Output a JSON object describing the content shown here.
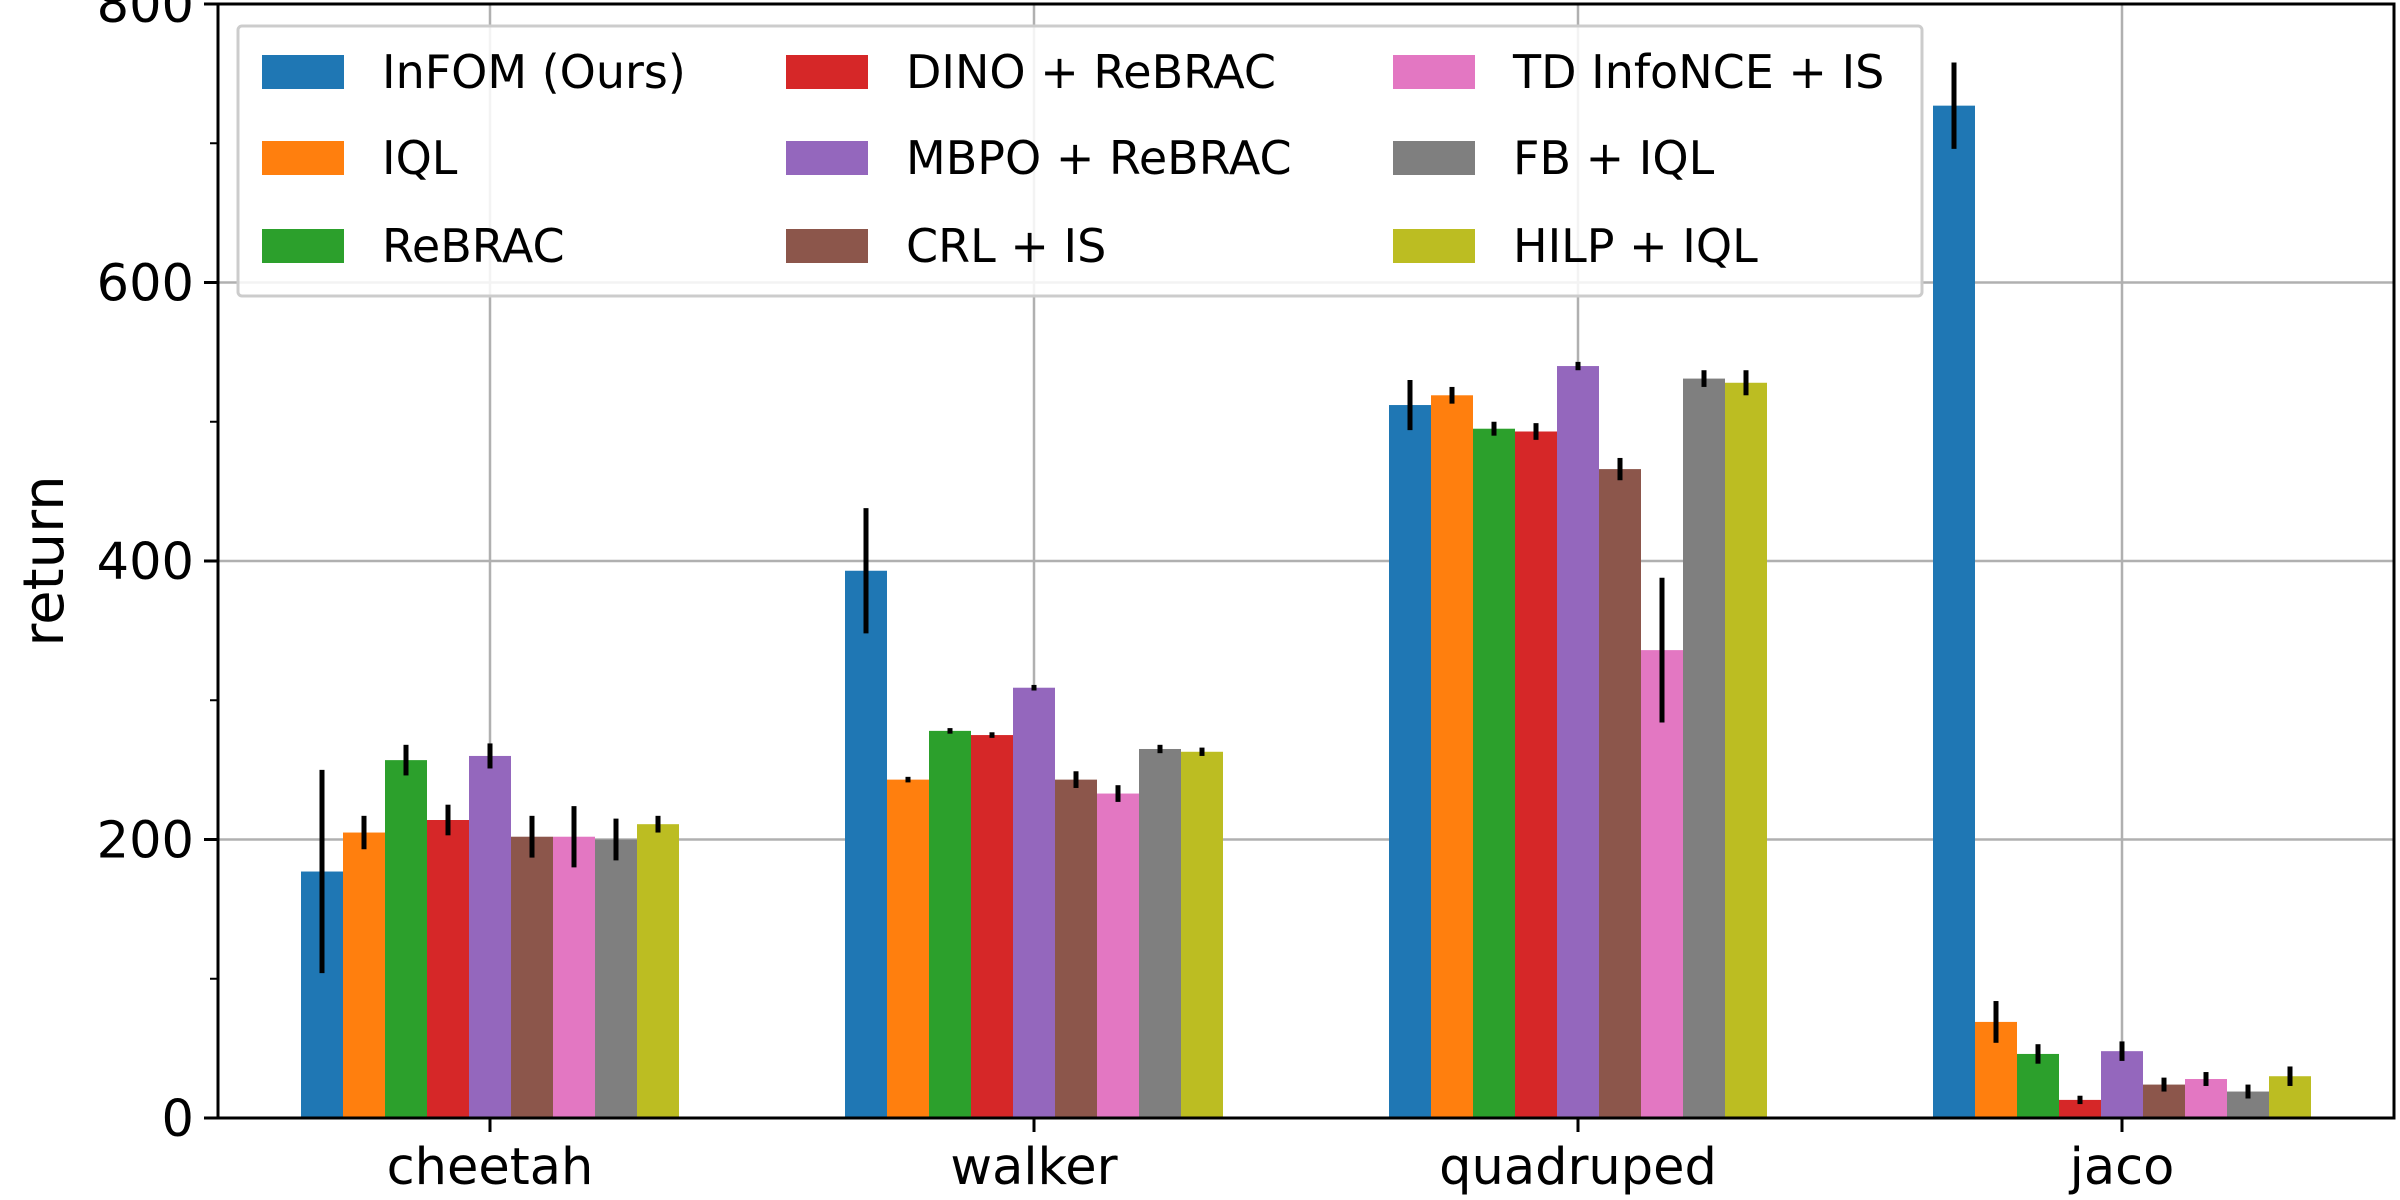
{
  "chart_data": {
    "type": "bar",
    "title": "",
    "xlabel": "",
    "ylabel": "return",
    "ylim": [
      0,
      800
    ],
    "yticks": [
      0,
      200,
      400,
      600,
      800
    ],
    "yticks_minor": [
      100,
      300,
      500,
      700
    ],
    "grid": true,
    "legend_position": "top-left",
    "legend_columns": 3,
    "categories": [
      "cheetah",
      "walker",
      "quadruped",
      "jaco"
    ],
    "series": [
      {
        "name": "InFOM (Ours)",
        "color": "#1f77b4",
        "values": [
          177,
          393,
          512,
          727
        ],
        "errors": [
          73,
          45,
          18,
          31
        ]
      },
      {
        "name": "IQL",
        "color": "#ff7f0e",
        "values": [
          205,
          243,
          519,
          69
        ],
        "errors": [
          12,
          2,
          6,
          15
        ]
      },
      {
        "name": "ReBRAC",
        "color": "#2ca02c",
        "values": [
          257,
          278,
          495,
          46
        ],
        "errors": [
          11,
          2,
          5,
          7
        ]
      },
      {
        "name": "DINO + ReBRAC",
        "color": "#d62728",
        "values": [
          214,
          275,
          493,
          13
        ],
        "errors": [
          11,
          2,
          6,
          3
        ]
      },
      {
        "name": "MBPO + ReBRAC",
        "color": "#9467bd",
        "values": [
          260,
          309,
          540,
          48
        ],
        "errors": [
          9,
          2,
          3,
          7
        ]
      },
      {
        "name": "CRL + IS",
        "color": "#8c564b",
        "values": [
          202,
          243,
          466,
          24
        ],
        "errors": [
          15,
          6,
          8,
          5
        ]
      },
      {
        "name": "TD InfoNCE + IS",
        "color": "#e377c2",
        "values": [
          202,
          233,
          336,
          28
        ],
        "errors": [
          22,
          6,
          52,
          5
        ]
      },
      {
        "name": "FB + IQL",
        "color": "#7f7f7f",
        "values": [
          200,
          265,
          531,
          19
        ],
        "errors": [
          15,
          3,
          6,
          5
        ]
      },
      {
        "name": "HILP + IQL",
        "color": "#bcbd22",
        "values": [
          211,
          263,
          528,
          30
        ],
        "errors": [
          6,
          3,
          9,
          7
        ]
      }
    ]
  }
}
